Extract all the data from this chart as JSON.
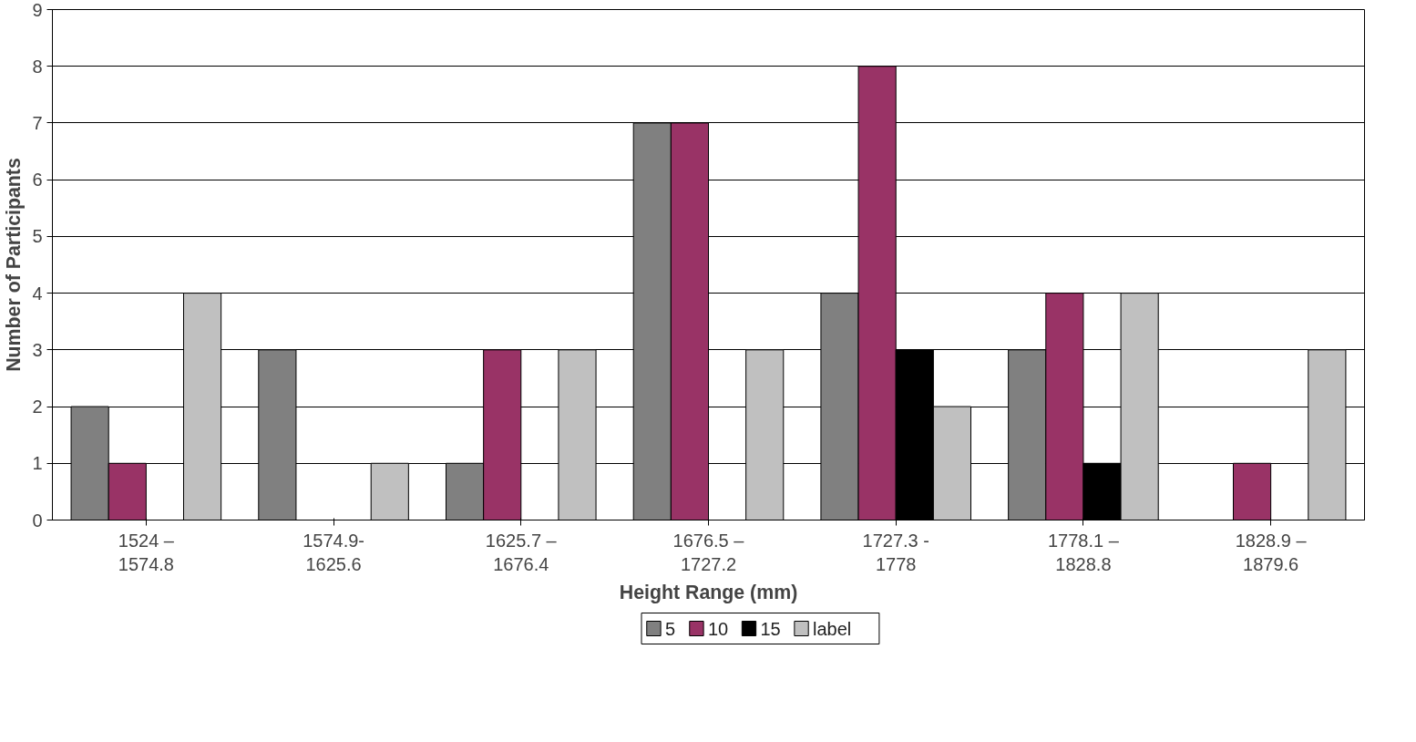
{
  "chart_data": {
    "type": "bar",
    "xlabel": "Height Range (mm)",
    "ylabel": "Number of Participants",
    "categories": [
      "1524 –\n1574.8",
      "1574.9-\n1625.6",
      "1625.7 –\n1676.4",
      "1676.5 –\n1727.2",
      "1727.3 -\n1778",
      "1778.1 –\n1828.8",
      "1828.9 –\n1879.6"
    ],
    "series": [
      {
        "name": "5",
        "color": "#808080",
        "values": [
          2,
          3,
          1,
          7,
          4,
          3,
          0
        ]
      },
      {
        "name": "10",
        "color": "#993366",
        "values": [
          1,
          0,
          3,
          7,
          8,
          4,
          1
        ]
      },
      {
        "name": "15",
        "color": "#000000",
        "values": [
          0,
          0,
          0,
          0,
          3,
          1,
          0
        ]
      },
      {
        "name": "label",
        "color": "#c0c0c0",
        "values": [
          4,
          1,
          3,
          3,
          2,
          4,
          3
        ]
      }
    ],
    "ylim": [
      0,
      9
    ],
    "yticks": [
      0,
      1,
      2,
      3,
      4,
      5,
      6,
      7,
      8,
      9
    ],
    "grid": "y",
    "legend": "bottom"
  }
}
